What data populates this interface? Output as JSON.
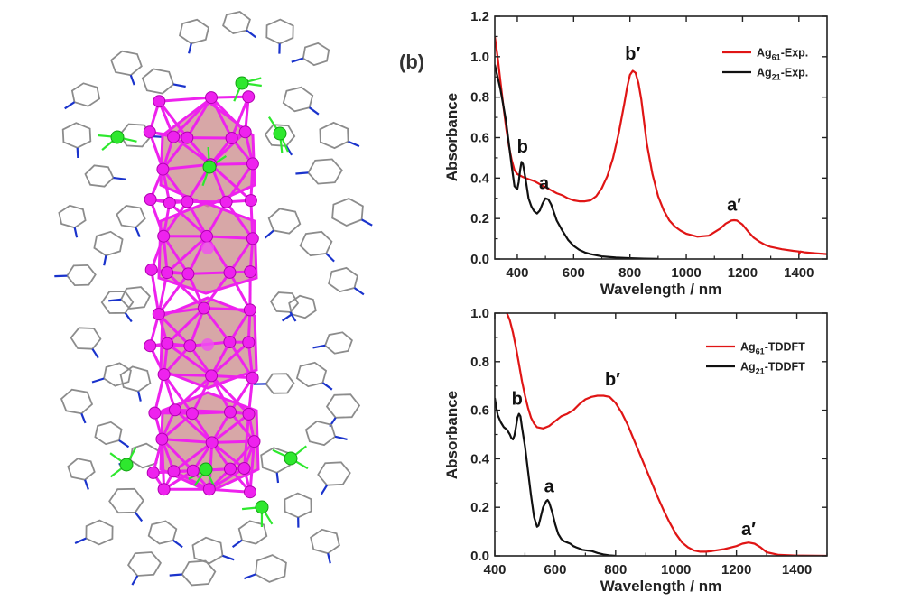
{
  "panel_label": "(b)",
  "colors": {
    "ag61": "#e01515",
    "ag21": "#111111",
    "silver": "#ee22ee",
    "ligand": "#8c8c8c",
    "nitrogen": "#1a33cc",
    "metal_green": "#2ee82e",
    "polyhedron": "#c98a8a"
  },
  "chart_data": [
    {
      "id": "experimental",
      "type": "line",
      "xlabel": "Wavelength / nm",
      "ylabel": "Absorbance",
      "xlim": [
        320,
        1500
      ],
      "ylim": [
        0.0,
        1.2
      ],
      "x_ticks": [
        400,
        600,
        800,
        1000,
        1200,
        1400
      ],
      "y_ticks": [
        0.0,
        0.2,
        0.4,
        0.6,
        0.8,
        1.0,
        1.2
      ],
      "x_tick_labels": [
        "400",
        "600",
        "800",
        "1000",
        "1200",
        "1400"
      ],
      "y_tick_labels": [
        "0.0",
        "0.2",
        "0.4",
        "0.6",
        "0.8",
        "1.0",
        "1.2"
      ],
      "grid": false,
      "legend": "top-right",
      "series": [
        {
          "name": "Ag61-Exp.",
          "legend_base": "Ag",
          "legend_sub": "61",
          "legend_suffix": "-Exp.",
          "color": "#e01515",
          "x": [
            320,
            330,
            340,
            350,
            360,
            370,
            380,
            390,
            400,
            420,
            440,
            460,
            480,
            500,
            520,
            540,
            560,
            580,
            600,
            620,
            640,
            660,
            680,
            700,
            720,
            740,
            760,
            780,
            790,
            800,
            810,
            820,
            830,
            840,
            850,
            860,
            880,
            900,
            920,
            940,
            960,
            980,
            1000,
            1040,
            1080,
            1120,
            1140,
            1160,
            1170,
            1180,
            1200,
            1220,
            1240,
            1260,
            1280,
            1300,
            1340,
            1380,
            1400,
            1402,
            1404,
            1420,
            1460,
            1500
          ],
          "y": [
            1.1,
            1.0,
            0.88,
            0.76,
            0.65,
            0.56,
            0.49,
            0.44,
            0.42,
            0.405,
            0.395,
            0.385,
            0.37,
            0.355,
            0.34,
            0.325,
            0.315,
            0.3,
            0.29,
            0.285,
            0.285,
            0.29,
            0.31,
            0.35,
            0.41,
            0.5,
            0.62,
            0.77,
            0.85,
            0.91,
            0.93,
            0.92,
            0.87,
            0.79,
            0.68,
            0.57,
            0.42,
            0.31,
            0.24,
            0.19,
            0.16,
            0.14,
            0.125,
            0.11,
            0.115,
            0.15,
            0.175,
            0.19,
            0.192,
            0.19,
            0.17,
            0.135,
            0.105,
            0.085,
            0.07,
            0.06,
            0.048,
            0.04,
            0.037,
            0.025,
            0.037,
            0.033,
            0.028,
            0.024
          ]
        },
        {
          "name": "Ag21-Exp.",
          "legend_base": "Ag",
          "legend_sub": "21",
          "legend_suffix": "-Exp.",
          "color": "#111111",
          "x": [
            320,
            330,
            340,
            350,
            360,
            370,
            380,
            390,
            400,
            405,
            410,
            415,
            420,
            430,
            440,
            450,
            460,
            470,
            480,
            490,
            500,
            510,
            520,
            530,
            540,
            560,
            580,
            600,
            620,
            640,
            660,
            700,
            750,
            800,
            850,
            900
          ],
          "y": [
            0.96,
            0.9,
            0.84,
            0.76,
            0.68,
            0.57,
            0.46,
            0.36,
            0.345,
            0.38,
            0.44,
            0.48,
            0.47,
            0.39,
            0.3,
            0.26,
            0.235,
            0.225,
            0.24,
            0.275,
            0.3,
            0.295,
            0.27,
            0.23,
            0.19,
            0.14,
            0.095,
            0.065,
            0.045,
            0.032,
            0.024,
            0.013,
            0.007,
            0.004,
            0.002,
            0.001
          ]
        }
      ],
      "annotations": [
        {
          "text": "b′",
          "x": 810,
          "y": 0.96
        },
        {
          "text": "a′",
          "x": 1170,
          "y": 0.22
        },
        {
          "text": "b",
          "x": 425,
          "y": 0.5
        },
        {
          "text": "a",
          "x": 495,
          "y": 0.32
        }
      ]
    },
    {
      "id": "tddft",
      "type": "line",
      "xlabel": "Wavelength / nm",
      "ylabel": "Absorbance",
      "xlim": [
        400,
        1500
      ],
      "ylim": [
        0.0,
        1.0
      ],
      "x_ticks": [
        400,
        600,
        800,
        1000,
        1200,
        1400
      ],
      "y_ticks": [
        0.0,
        0.2,
        0.4,
        0.6,
        0.8,
        1.0
      ],
      "x_tick_labels": [
        "400",
        "600",
        "800",
        "1000",
        "1200",
        "1400"
      ],
      "y_tick_labels": [
        "0.0",
        "0.2",
        "0.4",
        "0.6",
        "0.8",
        "1.0"
      ],
      "grid": false,
      "legend": "top-right",
      "series": [
        {
          "name": "Ag61-TDDFT",
          "legend_base": "Ag",
          "legend_sub": "61",
          "legend_suffix": "-TDDFT",
          "color": "#e01515",
          "x": [
            440,
            450,
            460,
            470,
            480,
            490,
            500,
            510,
            520,
            530,
            540,
            560,
            580,
            600,
            620,
            640,
            660,
            680,
            700,
            720,
            740,
            760,
            780,
            800,
            820,
            840,
            860,
            880,
            900,
            920,
            940,
            960,
            980,
            1000,
            1020,
            1040,
            1060,
            1080,
            1100,
            1120,
            1160,
            1200,
            1220,
            1240,
            1260,
            1280,
            1300,
            1340,
            1400,
            1500
          ],
          "y": [
            1.0,
            0.97,
            0.92,
            0.86,
            0.79,
            0.72,
            0.66,
            0.61,
            0.57,
            0.545,
            0.53,
            0.525,
            0.535,
            0.555,
            0.575,
            0.585,
            0.6,
            0.625,
            0.645,
            0.655,
            0.66,
            0.66,
            0.655,
            0.63,
            0.59,
            0.54,
            0.48,
            0.42,
            0.36,
            0.3,
            0.24,
            0.185,
            0.135,
            0.09,
            0.055,
            0.035,
            0.022,
            0.017,
            0.017,
            0.02,
            0.028,
            0.04,
            0.05,
            0.055,
            0.05,
            0.035,
            0.015,
            0.004,
            0.001,
            0.0
          ]
        },
        {
          "name": "Ag21-TDDFT",
          "legend_base": "Ag",
          "legend_sub": "21",
          "legend_suffix": "-TDDFT",
          "color": "#111111",
          "x": [
            400,
            405,
            410,
            420,
            430,
            440,
            450,
            455,
            460,
            465,
            470,
            475,
            480,
            485,
            490,
            500,
            510,
            520,
            530,
            540,
            545,
            550,
            560,
            570,
            575,
            580,
            590,
            600,
            610,
            620,
            630,
            640,
            650,
            660,
            670,
            680,
            690,
            700,
            720,
            740,
            760,
            780,
            800
          ],
          "y": [
            0.65,
            0.61,
            0.58,
            0.55,
            0.53,
            0.52,
            0.5,
            0.485,
            0.48,
            0.495,
            0.53,
            0.57,
            0.585,
            0.575,
            0.53,
            0.45,
            0.35,
            0.25,
            0.16,
            0.12,
            0.125,
            0.15,
            0.2,
            0.225,
            0.23,
            0.22,
            0.18,
            0.13,
            0.09,
            0.07,
            0.06,
            0.055,
            0.05,
            0.04,
            0.035,
            0.03,
            0.025,
            0.023,
            0.02,
            0.012,
            0.006,
            0.002,
            0.0
          ]
        }
      ],
      "annotations": [
        {
          "text": "b′",
          "x": 790,
          "y": 0.68
        },
        {
          "text": "a′",
          "x": 1240,
          "y": 0.07
        },
        {
          "text": "b",
          "x": 480,
          "y": 0.6
        },
        {
          "text": "a",
          "x": 580,
          "y": 0.24
        }
      ]
    }
  ]
}
